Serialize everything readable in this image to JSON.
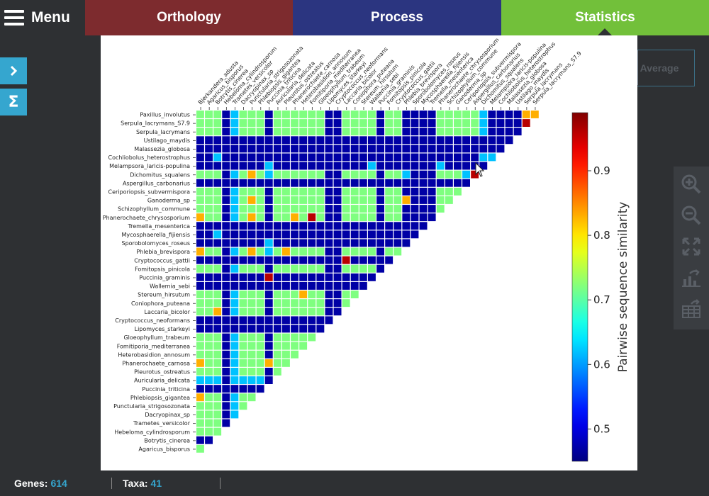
{
  "menu": {
    "label": "Menu"
  },
  "tabs": [
    {
      "label": "Orthology"
    },
    {
      "label": "Process"
    },
    {
      "label": "Statistics"
    }
  ],
  "background_controls": {
    "average_label": "Average"
  },
  "status": {
    "genes_label": "Genes:",
    "genes_value": "614",
    "taxa_label": "Taxa:",
    "taxa_value": "41"
  },
  "colors": {
    "orthology_tab": "#7d2b2e",
    "process_tab": "#2b3580",
    "statistics_tab": "#72c03a",
    "accent": "#35a6cf"
  },
  "chart_data": {
    "type": "heatmap",
    "title": "",
    "colorbar_label": "Pairwise sequence similarity",
    "colorbar_ticks": [
      0.5,
      0.6,
      0.7,
      0.8,
      0.9
    ],
    "colorbar_range": [
      0.45,
      0.99
    ],
    "colormap": "jet",
    "rows": [
      "Paxillus_involutus",
      "Serpula_lacrymans_S7.9",
      "Serpula_lacrymans",
      "Ustilago_maydis",
      "Malassezia_globosa",
      "Cochliobolus_heterostrophus",
      "Melampsora_laricis-populina",
      "Dichomitus_squalens",
      "Aspergillus_carbonarius",
      "Ceriporiopsis_subvermispora",
      "Ganoderma_sp",
      "Schizophyllum_commune",
      "Phanerochaete_chrysosporium",
      "Tremella_mesenterica",
      "Mycosphaerella_fijiensis",
      "Sporobolomyces_roseus",
      "Phlebia_brevispora",
      "Cryptococcus_gattii",
      "Fomitopsis_pinicola",
      "Puccinia_graminis",
      "Wallemia_sebi",
      "Stereum_hirsutum",
      "Coniophora_puteana",
      "Laccaria_bicolor",
      "Cryptococcus_neoformans",
      "Lipomyces_starkeyi",
      "Gloeophyllum_trabeum",
      "Fomitiporia_mediterranea",
      "Heterobasidion_annosum",
      "Phanerochaete_carnosa",
      "Pleurotus_ostreatus",
      "Auricularia_delicata",
      "Puccinia_triticina",
      "Phlebiopsis_gigantea",
      "Punctularia_strigosozonata",
      "Dacryopinax_sp",
      "Trametes_versicolor",
      "Hebeloma_cylindrosporum",
      "Botrytis_cinerea",
      "Agaricus_bisporus"
    ],
    "columns": [
      "Bjerkandera_adusta",
      "Agaricus_bisporus",
      "Botrytis_cinerea",
      "Hebeloma_cylindrosporum",
      "Trametes_versicolor",
      "Dacryopinax_sp",
      "Punctularia_strigosozonata",
      "Phlebiopsis_gigantea",
      "Puccinia_triticina",
      "Auricularia_delicata",
      "Pleurotus_ostreatus",
      "Phanerochaete_carnosa",
      "Heterobasidion_annosum",
      "Fomitiporia_mediterranea",
      "Gloeophyllum_trabeum",
      "Lipomyces_starkeyi",
      "Cryptococcus_neoformans",
      "Laccaria_bicolor",
      "Coniophora_puteana",
      "Stereum_hirsutum",
      "Wallemia_sebi",
      "Puccinia_graminis",
      "Fomitopsis_pinicola",
      "Cryptococcus_gattii",
      "Phlebia_brevispora",
      "Sporobolomyces_roseus",
      "Mycosphaerella_fijiensis",
      "Tremella_mesenterica",
      "Phanerochaete_chrysosporium",
      "Schizophyllum_commune",
      "Ganoderma_sp",
      "Ceriporiopsis_subvermispora",
      "Aspergillus_carbonarius",
      "Dichomitus_squalens",
      "Melampsora_laricis-populina",
      "Cochliobolus_heterostrophus",
      "Malassezia_globosa",
      "Ustilago_maydis",
      "Serpula_lacrymans",
      "Serpula_lacrymans_S7.9"
    ],
    "values_note": "lower-triangular matrix; row i has (40 - i) cells; 'A' = agaricomycete-like (~0.72), 'L' = low (~0.47), 'M' = mid (~0.62), 'H' = high (~0.83), 'R' = very high (~0.96)",
    "matrix": [
      "AAALMAAALAAAAAALLAAAALAALLLLAAAAAMLLLLHH",
      "AAALMAAALAAAAAALLAAAALAALLLLAAAAAMLLLLR",
      "AAALMAAALAAAAAALLAAAALAALLLLAAAAAMLLLL",
      "LLLLLLLLLLLLLLLLLLLLLLLLLLLLLLLLLLLLL",
      "LLLLLLLLLLLLLLLLLLLLLLLLLLLLLLLLLLLL",
      "LLMLLLLLLLLLLLLLLLLLLLLLLLLLLLLLLMM",
      "LLLLLLLLMLLLLLLLLLLLMLLLLLLLMLLLLL",
      "AAALMAHAMAAAAAALLAAAALAAMLLLAAAMR",
      "LLLLLLLLLLLLLLLLLLLLLLLLLLLLLLLL",
      "AAALMAAALAAAAAALLAAAALAALLLLAAA",
      "AAALMAHALAAAAAALLAAAALAAHLLLAA",
      "AAALMAAALAAAAAALLAAAALAALLLLA",
      "HAALMAHALAAHARALLAAAALAALLLL",
      "LLLLLLLLLLLLLLLLLLLLLLLLLLL",
      "LLMLLLLLLLLLLLLLLLLLLLLLLL",
      "LLLLLLLLMLLLLLLLLLLLLLLLL",
      "HAALMAHAMAHAAAALLAAAALAA",
      "LLLLLLLLLLLLLLLLLRLLLLL",
      "AAALMAAALAAAAAALLAAAAL",
      "LLLLLLLLRLLLLLLLLLLLL",
      "LLLLLLLLLLLLLLLLLLLL",
      "AAALMAAALAAAHAALLAA",
      "AAALMAAALAAAAAALLA",
      "AAHLMAAALAAAAAALL",
      "LLLLLLLLLLLLLLLL",
      "LLLLLLLLLLLLLLL",
      "AAALMAAALAAAAA",
      "AAALMAAALAAAA",
      "AAALMAAALAAA",
      "HAALMAAAHAA",
      "AAALMAAALA",
      "MMMLMMMML",
      "LLLLLLLL",
      "HAALMAA",
      "AAALMA",
      "AAALM",
      "AAAL",
      "AAA",
      "LL",
      "A"
    ]
  }
}
